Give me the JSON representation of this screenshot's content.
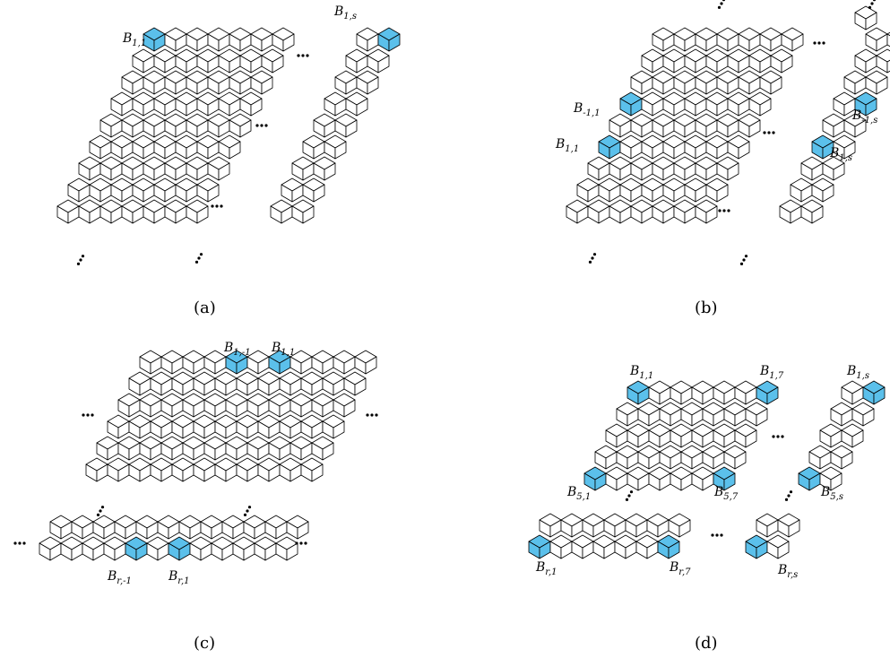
{
  "panels": [
    {
      "caption": "(a)",
      "labels": [
        {
          "main": "B",
          "sub": "1,1"
        },
        {
          "main": "B",
          "sub": "1,s"
        }
      ]
    },
    {
      "caption": "(b)",
      "labels": [
        {
          "main": "B",
          "sub": "-1,1"
        },
        {
          "main": "B",
          "sub": "1,1"
        },
        {
          "main": "B",
          "sub": "-1,s"
        },
        {
          "main": "B",
          "sub": "1,s"
        }
      ]
    },
    {
      "caption": "(c)",
      "labels": [
        {
          "main": "B",
          "sub": "1,-1"
        },
        {
          "main": "B",
          "sub": "1,1"
        },
        {
          "main": "B",
          "sub": "r,-1"
        },
        {
          "main": "B",
          "sub": "r,1"
        }
      ]
    },
    {
      "caption": "(d)",
      "labels": [
        {
          "main": "B",
          "sub": "1,1"
        },
        {
          "main": "B",
          "sub": "1,7"
        },
        {
          "main": "B",
          "sub": "1,s"
        },
        {
          "main": "B",
          "sub": "5,1"
        },
        {
          "main": "B",
          "sub": "5,7"
        },
        {
          "main": "B",
          "sub": "5,s"
        },
        {
          "main": "B",
          "sub": "r,1"
        },
        {
          "main": "B",
          "sub": "r,7"
        },
        {
          "main": "B",
          "sub": "r,s"
        }
      ]
    }
  ],
  "colors": {
    "highlight": "#5bc0eb",
    "cube": "#ffffff",
    "stroke": "#000000"
  },
  "icons": [
    "cube-icon",
    "ellipsis-icon"
  ]
}
